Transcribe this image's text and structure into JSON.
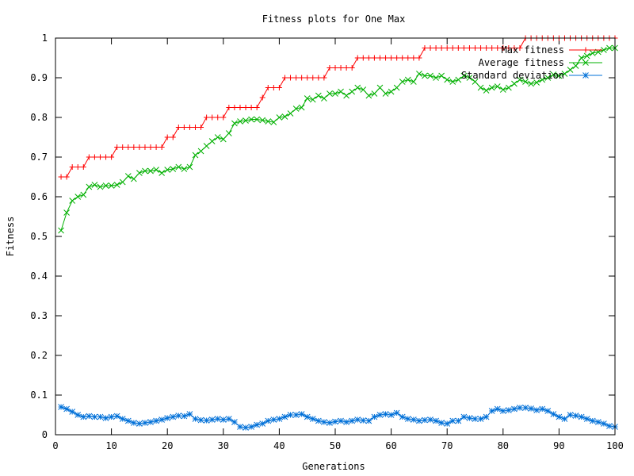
{
  "chart_data": {
    "type": "line",
    "title": "Fitness plots for One Max",
    "xlabel": "Generations",
    "ylabel": "Fitness",
    "xlim": [
      0,
      100
    ],
    "ylim": [
      0,
      1
    ],
    "xticks": [
      "0",
      "10",
      "20",
      "30",
      "40",
      "50",
      "60",
      "70",
      "80",
      "90",
      "100"
    ],
    "yticks": [
      "0",
      "0.1",
      "0.2",
      "0.3",
      "0.4",
      "0.5",
      "0.6",
      "0.7",
      "0.8",
      "0.9",
      "1"
    ],
    "grid": false,
    "legend_position": "top-right",
    "x": [
      1,
      2,
      3,
      4,
      5,
      6,
      7,
      8,
      9,
      10,
      11,
      12,
      13,
      14,
      15,
      16,
      17,
      18,
      19,
      20,
      21,
      22,
      23,
      24,
      25,
      26,
      27,
      28,
      29,
      30,
      31,
      32,
      33,
      34,
      35,
      36,
      37,
      38,
      39,
      40,
      41,
      42,
      43,
      44,
      45,
      46,
      47,
      48,
      49,
      50,
      51,
      52,
      53,
      54,
      55,
      56,
      57,
      58,
      59,
      60,
      61,
      62,
      63,
      64,
      65,
      66,
      67,
      68,
      69,
      70,
      71,
      72,
      73,
      74,
      75,
      76,
      77,
      78,
      79,
      80,
      81,
      82,
      83,
      84,
      85,
      86,
      87,
      88,
      89,
      90,
      91,
      92,
      93,
      94,
      95,
      96,
      97,
      98,
      99,
      100
    ],
    "series": [
      {
        "name": "Max fitness",
        "color": "#ff0000",
        "marker": "plus",
        "values": [
          0.65,
          0.65,
          0.675,
          0.675,
          0.675,
          0.7,
          0.7,
          0.7,
          0.7,
          0.7,
          0.725,
          0.725,
          0.725,
          0.725,
          0.725,
          0.725,
          0.725,
          0.725,
          0.725,
          0.75,
          0.75,
          0.775,
          0.775,
          0.775,
          0.775,
          0.775,
          0.8,
          0.8,
          0.8,
          0.8,
          0.825,
          0.825,
          0.825,
          0.825,
          0.825,
          0.825,
          0.85,
          0.875,
          0.875,
          0.875,
          0.9,
          0.9,
          0.9,
          0.9,
          0.9,
          0.9,
          0.9,
          0.9,
          0.925,
          0.925,
          0.925,
          0.925,
          0.925,
          0.95,
          0.95,
          0.95,
          0.95,
          0.95,
          0.95,
          0.95,
          0.95,
          0.95,
          0.95,
          0.95,
          0.95,
          0.975,
          0.975,
          0.975,
          0.975,
          0.975,
          0.975,
          0.975,
          0.975,
          0.975,
          0.975,
          0.975,
          0.975,
          0.975,
          0.975,
          0.975,
          0.975,
          0.975,
          0.975,
          1,
          1,
          1,
          1,
          1,
          1,
          1,
          1,
          1,
          1,
          1,
          1,
          1,
          1,
          1,
          1,
          1
        ]
      },
      {
        "name": "Average fitness",
        "color": "#00b000",
        "marker": "cross",
        "values": [
          0.515,
          0.56,
          0.59,
          0.6,
          0.605,
          0.625,
          0.63,
          0.625,
          0.628,
          0.628,
          0.63,
          0.637,
          0.652,
          0.645,
          0.66,
          0.665,
          0.665,
          0.668,
          0.66,
          0.668,
          0.67,
          0.675,
          0.67,
          0.675,
          0.705,
          0.715,
          0.728,
          0.74,
          0.75,
          0.745,
          0.76,
          0.785,
          0.79,
          0.792,
          0.795,
          0.795,
          0.793,
          0.79,
          0.788,
          0.8,
          0.802,
          0.81,
          0.822,
          0.825,
          0.848,
          0.845,
          0.855,
          0.848,
          0.86,
          0.86,
          0.865,
          0.855,
          0.865,
          0.875,
          0.87,
          0.855,
          0.86,
          0.875,
          0.86,
          0.865,
          0.875,
          0.89,
          0.895,
          0.89,
          0.91,
          0.905,
          0.905,
          0.9,
          0.905,
          0.895,
          0.89,
          0.895,
          0.905,
          0.9,
          0.89,
          0.875,
          0.868,
          0.875,
          0.878,
          0.87,
          0.875,
          0.885,
          0.895,
          0.89,
          0.885,
          0.888,
          0.895,
          0.9,
          0.908,
          0.905,
          0.91,
          0.92,
          0.93,
          0.95,
          0.955,
          0.962,
          0.965,
          0.97,
          0.975,
          0.975
        ]
      },
      {
        "name": "Standard deviation",
        "color": "#0070d8",
        "marker": "star",
        "values": [
          0.07,
          0.065,
          0.058,
          0.05,
          0.045,
          0.047,
          0.045,
          0.045,
          0.042,
          0.045,
          0.047,
          0.04,
          0.035,
          0.03,
          0.028,
          0.03,
          0.032,
          0.035,
          0.038,
          0.042,
          0.045,
          0.048,
          0.047,
          0.052,
          0.04,
          0.037,
          0.036,
          0.038,
          0.04,
          0.038,
          0.04,
          0.032,
          0.02,
          0.018,
          0.02,
          0.025,
          0.028,
          0.035,
          0.038,
          0.04,
          0.045,
          0.05,
          0.05,
          0.052,
          0.045,
          0.04,
          0.035,
          0.032,
          0.03,
          0.033,
          0.035,
          0.032,
          0.035,
          0.038,
          0.036,
          0.035,
          0.045,
          0.05,
          0.052,
          0.05,
          0.055,
          0.045,
          0.04,
          0.038,
          0.035,
          0.037,
          0.038,
          0.035,
          0.03,
          0.028,
          0.035,
          0.035,
          0.045,
          0.042,
          0.04,
          0.04,
          0.045,
          0.06,
          0.065,
          0.06,
          0.062,
          0.065,
          0.068,
          0.068,
          0.066,
          0.062,
          0.065,
          0.06,
          0.052,
          0.045,
          0.04,
          0.05,
          0.048,
          0.045,
          0.04,
          0.035,
          0.032,
          0.028,
          0.022,
          0.02
        ]
      }
    ]
  }
}
